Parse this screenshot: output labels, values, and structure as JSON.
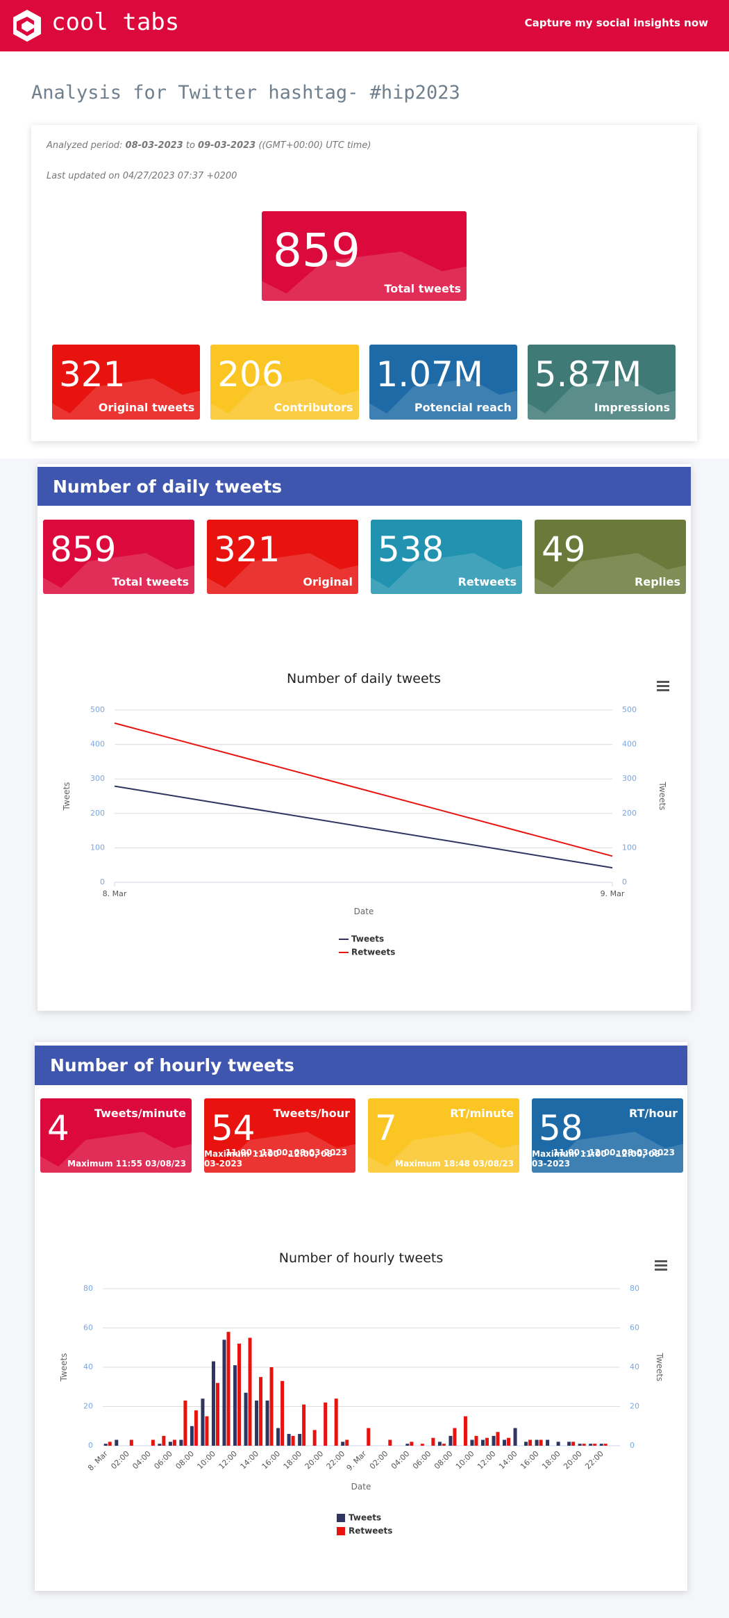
{
  "header": {
    "logo": "cool tabs",
    "cta": "Capture my social insights now"
  },
  "page_title": "Analysis for Twitter hashtag- #hip2023",
  "summary": {
    "period_label": "Analyzed period:",
    "period_from": "08-03-2023",
    "period_to_word": "to",
    "period_to": "09-03-2023",
    "timezone": "((GMT+00:00) UTC time)",
    "updated": "Last updated on 04/27/2023 07:37 +0200",
    "total": {
      "value": "859",
      "label": "Total tweets",
      "color": "#dc0a3c"
    },
    "cards": [
      {
        "value": "321",
        "label": "Original tweets",
        "color": "#e8120f"
      },
      {
        "value": "206",
        "label": "Contributors",
        "color": "#fbc524"
      },
      {
        "value": "1.07M",
        "label": "Potencial reach",
        "color": "#1e6aa6"
      },
      {
        "value": "5.87M",
        "label": "Impressions",
        "color": "#3f7a77"
      }
    ]
  },
  "daily": {
    "title": "Number of daily tweets",
    "cards": [
      {
        "value": "859",
        "label": "Total tweets",
        "color": "#dc0a3c"
      },
      {
        "value": "321",
        "label": "Original",
        "color": "#e8120f"
      },
      {
        "value": "538",
        "label": "Retweets",
        "color": "#2193b0"
      },
      {
        "value": "49",
        "label": "Replies",
        "color": "#6b7a3a"
      }
    ],
    "chart": {
      "type": "line",
      "title": "Number of daily tweets",
      "x_label": "Date",
      "y_label": "Tweets",
      "y2_label": "Tweets",
      "categories": [
        "8. Mar",
        "9. Mar"
      ],
      "series": [
        {
          "name": "Tweets",
          "color": "#2d3560",
          "values": [
            279,
            42
          ]
        },
        {
          "name": "Retweets",
          "color": "#e8120f",
          "values": [
            462,
            76
          ]
        }
      ],
      "ylim": [
        0,
        500
      ],
      "yticks": [
        0,
        100,
        200,
        300,
        400,
        500
      ],
      "y2lim": [
        0,
        500
      ],
      "y2ticks": [
        0,
        100,
        200,
        300,
        400,
        500
      ],
      "grid": true
    }
  },
  "hourly": {
    "title": "Number of hourly tweets",
    "cards": [
      {
        "value": "4",
        "label": "Tweets/minute",
        "max": "Maximum 11:55 03/08/23",
        "color": "#dc0a3c"
      },
      {
        "value": "54",
        "label": "Tweets/hour",
        "range": "11:00 - 12:00, 08-03-2023",
        "max": "Maximum 11:00 - 12:00, 08-03-2023",
        "color": "#e8120f"
      },
      {
        "value": "7",
        "label": "RT/minute",
        "max": "Maximum 18:48 03/08/23",
        "color": "#fbc524"
      },
      {
        "value": "58",
        "label": "RT/hour",
        "range": "11:00 - 12:00, 08-03-2023",
        "max": "Maximum 11:00 - 12:00, 08-03-2023",
        "color": "#1e6aa6"
      }
    ],
    "chart": {
      "type": "bar",
      "title": "Number of hourly tweets",
      "x_label": "Date",
      "y_label": "Tweets",
      "y2_label": "Tweets",
      "categories": [
        "8. Mar",
        null,
        "02:00",
        null,
        "04:00",
        null,
        "06:00",
        null,
        "08:00",
        null,
        "10:00",
        null,
        "12:00",
        null,
        "14:00",
        null,
        "16:00",
        null,
        "18:00",
        null,
        "20:00",
        null,
        "22:00",
        null,
        "9. Mar",
        null,
        "02:00",
        null,
        "04:00",
        null,
        "06:00",
        null,
        "08:00",
        null,
        "10:00",
        null,
        "12:00",
        null,
        "14:00",
        null,
        "16:00",
        null,
        "18:00",
        null,
        "20:00",
        null,
        "22:00",
        null
      ],
      "series": [
        {
          "name": "Tweets",
          "color": "#2d3560",
          "values": [
            1,
            3,
            0,
            0,
            0,
            1,
            2,
            3,
            10,
            24,
            43,
            54,
            41,
            27,
            23,
            23,
            9,
            6,
            6,
            0,
            0,
            0,
            2,
            0,
            0,
            0,
            0,
            0,
            1,
            0,
            0,
            2,
            5,
            0,
            3,
            3,
            5,
            3,
            9,
            2,
            3,
            3,
            2,
            2,
            1,
            1,
            1,
            0
          ]
        },
        {
          "name": "Retweets",
          "color": "#e8120f",
          "values": [
            2,
            0,
            3,
            0,
            3,
            5,
            3,
            23,
            18,
            15,
            32,
            58,
            52,
            55,
            35,
            40,
            33,
            5,
            21,
            8,
            22,
            24,
            3,
            0,
            9,
            0,
            3,
            0,
            2,
            1,
            4,
            1,
            9,
            15,
            5,
            4,
            7,
            4,
            0,
            3,
            3,
            0,
            0,
            2,
            1,
            1,
            1,
            0
          ]
        }
      ],
      "ylim": [
        0,
        80
      ],
      "yticks": [
        0,
        20,
        40,
        60,
        80
      ],
      "y2lim": [
        0,
        80
      ],
      "y2ticks": [
        0,
        20,
        40,
        60,
        80
      ],
      "grid": true
    }
  }
}
